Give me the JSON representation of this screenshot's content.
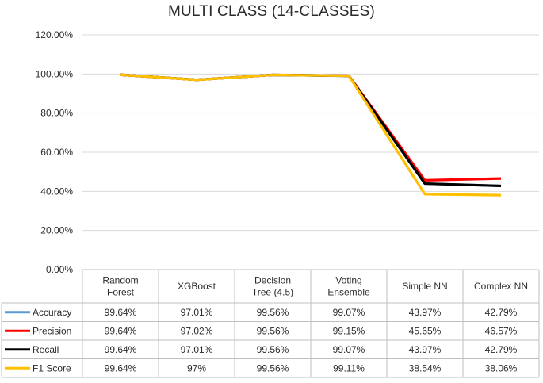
{
  "chart_data": {
    "type": "line",
    "title": "MULTI CLASS (14-CLASSES)",
    "categories": [
      [
        "Random",
        "Forest"
      ],
      [
        "XGBoost"
      ],
      [
        "Decision",
        "Tree (4.5)"
      ],
      [
        "Voting",
        "Ensemble"
      ],
      [
        "Simple NN"
      ],
      [
        "Complex NN"
      ]
    ],
    "ylim": [
      0,
      120
    ],
    "yticks": [
      "0.00%",
      "20.00%",
      "40.00%",
      "60.00%",
      "80.00%",
      "100.00%",
      "120.00%"
    ],
    "grid": true,
    "legend": "data-table",
    "series": [
      {
        "name": "Accuracy",
        "color": "#5b9bd5",
        "values": [
          99.64,
          97.01,
          99.56,
          99.07,
          43.97,
          42.79
        ],
        "labels": [
          "99.64%",
          "97.01%",
          "99.56%",
          "99.07%",
          "43.97%",
          "42.79%"
        ]
      },
      {
        "name": "Precision",
        "color": "#ff0000",
        "values": [
          99.64,
          97.02,
          99.56,
          99.15,
          45.65,
          46.57
        ],
        "labels": [
          "99.64%",
          "97.02%",
          "99.56%",
          "99.15%",
          "45.65%",
          "46.57%"
        ]
      },
      {
        "name": "Recall",
        "color": "#000000",
        "values": [
          99.64,
          97.01,
          99.56,
          99.07,
          43.97,
          42.79
        ],
        "labels": [
          "99.64%",
          "97.01%",
          "99.56%",
          "99.07%",
          "43.97%",
          "42.79%"
        ]
      },
      {
        "name": "F1 Score",
        "color": "#ffc000",
        "values": [
          99.64,
          97.0,
          99.56,
          99.11,
          38.54,
          38.06
        ],
        "labels": [
          "99.64%",
          "97%",
          "99.56%",
          "99.11%",
          "38.54%",
          "38.06%"
        ]
      }
    ]
  }
}
